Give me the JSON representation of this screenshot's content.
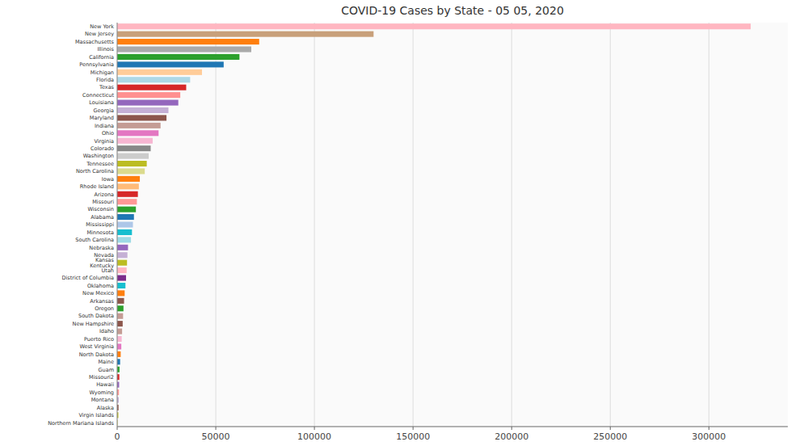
{
  "chart_data": {
    "type": "bar",
    "orientation": "horizontal",
    "title": "COVID-19 Cases by State - 05 05, 2020",
    "categories": [
      "New York",
      "New Jersey",
      "Massachusetts",
      "Illinois",
      "California",
      "Pennsylvania",
      "Michigan",
      "Florida",
      "Texas",
      "Connecticut",
      "Louisiana",
      "Georgia",
      "Maryland",
      "Indiana",
      "Ohio",
      "Virginia",
      "Colorado",
      "Washington",
      "Tennessee",
      "North Carolina",
      "Iowa",
      "Rhode Island",
      "Arizona",
      "Missouri",
      "Wisconsin",
      "Alabama",
      "Mississippi",
      "Minnesota",
      "South Carolina",
      "Nebraska",
      "Nevada",
      "Kansas\nKentucky",
      "Utah",
      "District of Columbia",
      "Oklahoma",
      "New Mexico",
      "Arkansas",
      "Oregon",
      "South Dakota",
      "New Hampshire",
      "Idaho",
      "Puerto Rico",
      "West Virginia",
      "North Dakota",
      "Maine",
      "Guam",
      "Missouri2",
      "Hawaii",
      "Wyoming",
      "Montana",
      "Alaska",
      "Virgin Islands",
      "Northern Mariana Islands"
    ],
    "values": [
      321192,
      130000,
      72000,
      68000,
      62000,
      54000,
      43000,
      37000,
      35000,
      32000,
      31000,
      26000,
      25000,
      22000,
      21000,
      18000,
      17000,
      16000,
      15000,
      14000,
      11500,
      11000,
      10500,
      10000,
      9500,
      8500,
      8000,
      7500,
      7000,
      5500,
      5200,
      5000,
      4800,
      4500,
      4200,
      3800,
      3500,
      3200,
      3000,
      2800,
      2500,
      2300,
      2100,
      1800,
      1500,
      1200,
      1100,
      1000,
      900,
      800,
      700,
      600,
      400
    ],
    "colors": [
      "#ffb6c1",
      "#c8a07a",
      "#ff7f0e",
      "#aaaaaa",
      "#2ca02c",
      "#1f77b4",
      "#ffcc99",
      "#add8e6",
      "#d62728",
      "#ff9090",
      "#9467bd",
      "#c5b0d5",
      "#8c564b",
      "#c49c94",
      "#e377c2",
      "#f7b6d2",
      "#888888",
      "#cccccc",
      "#bcbd22",
      "#dbdb8d",
      "#ff7f0e",
      "#ffbb78",
      "#d62728",
      "#ff9896",
      "#2ca02c",
      "#1f77b4",
      "#aec7e8",
      "#17becf",
      "#9edae5",
      "#9467bd",
      "#c5b0d5",
      "#bcbd22",
      "#ffb6c1",
      "#7b2d8b",
      "#17becf",
      "#ff7f0e",
      "#8c564b",
      "#2ca02c",
      "#c49c94",
      "#8c564b",
      "#c49c94",
      "#f7b6d2",
      "#e377c2",
      "#ff7f0e",
      "#1f77b4",
      "#2ca02c",
      "#d62728",
      "#9467bd",
      "#ff9896",
      "#c5b0d5",
      "#8c564b",
      "#bcbd22",
      "#dbdb8d"
    ],
    "xlim": [
      0,
      340000
    ],
    "xticks": [
      0,
      50000,
      100000,
      150000,
      200000,
      250000,
      300000
    ],
    "grid": true
  }
}
